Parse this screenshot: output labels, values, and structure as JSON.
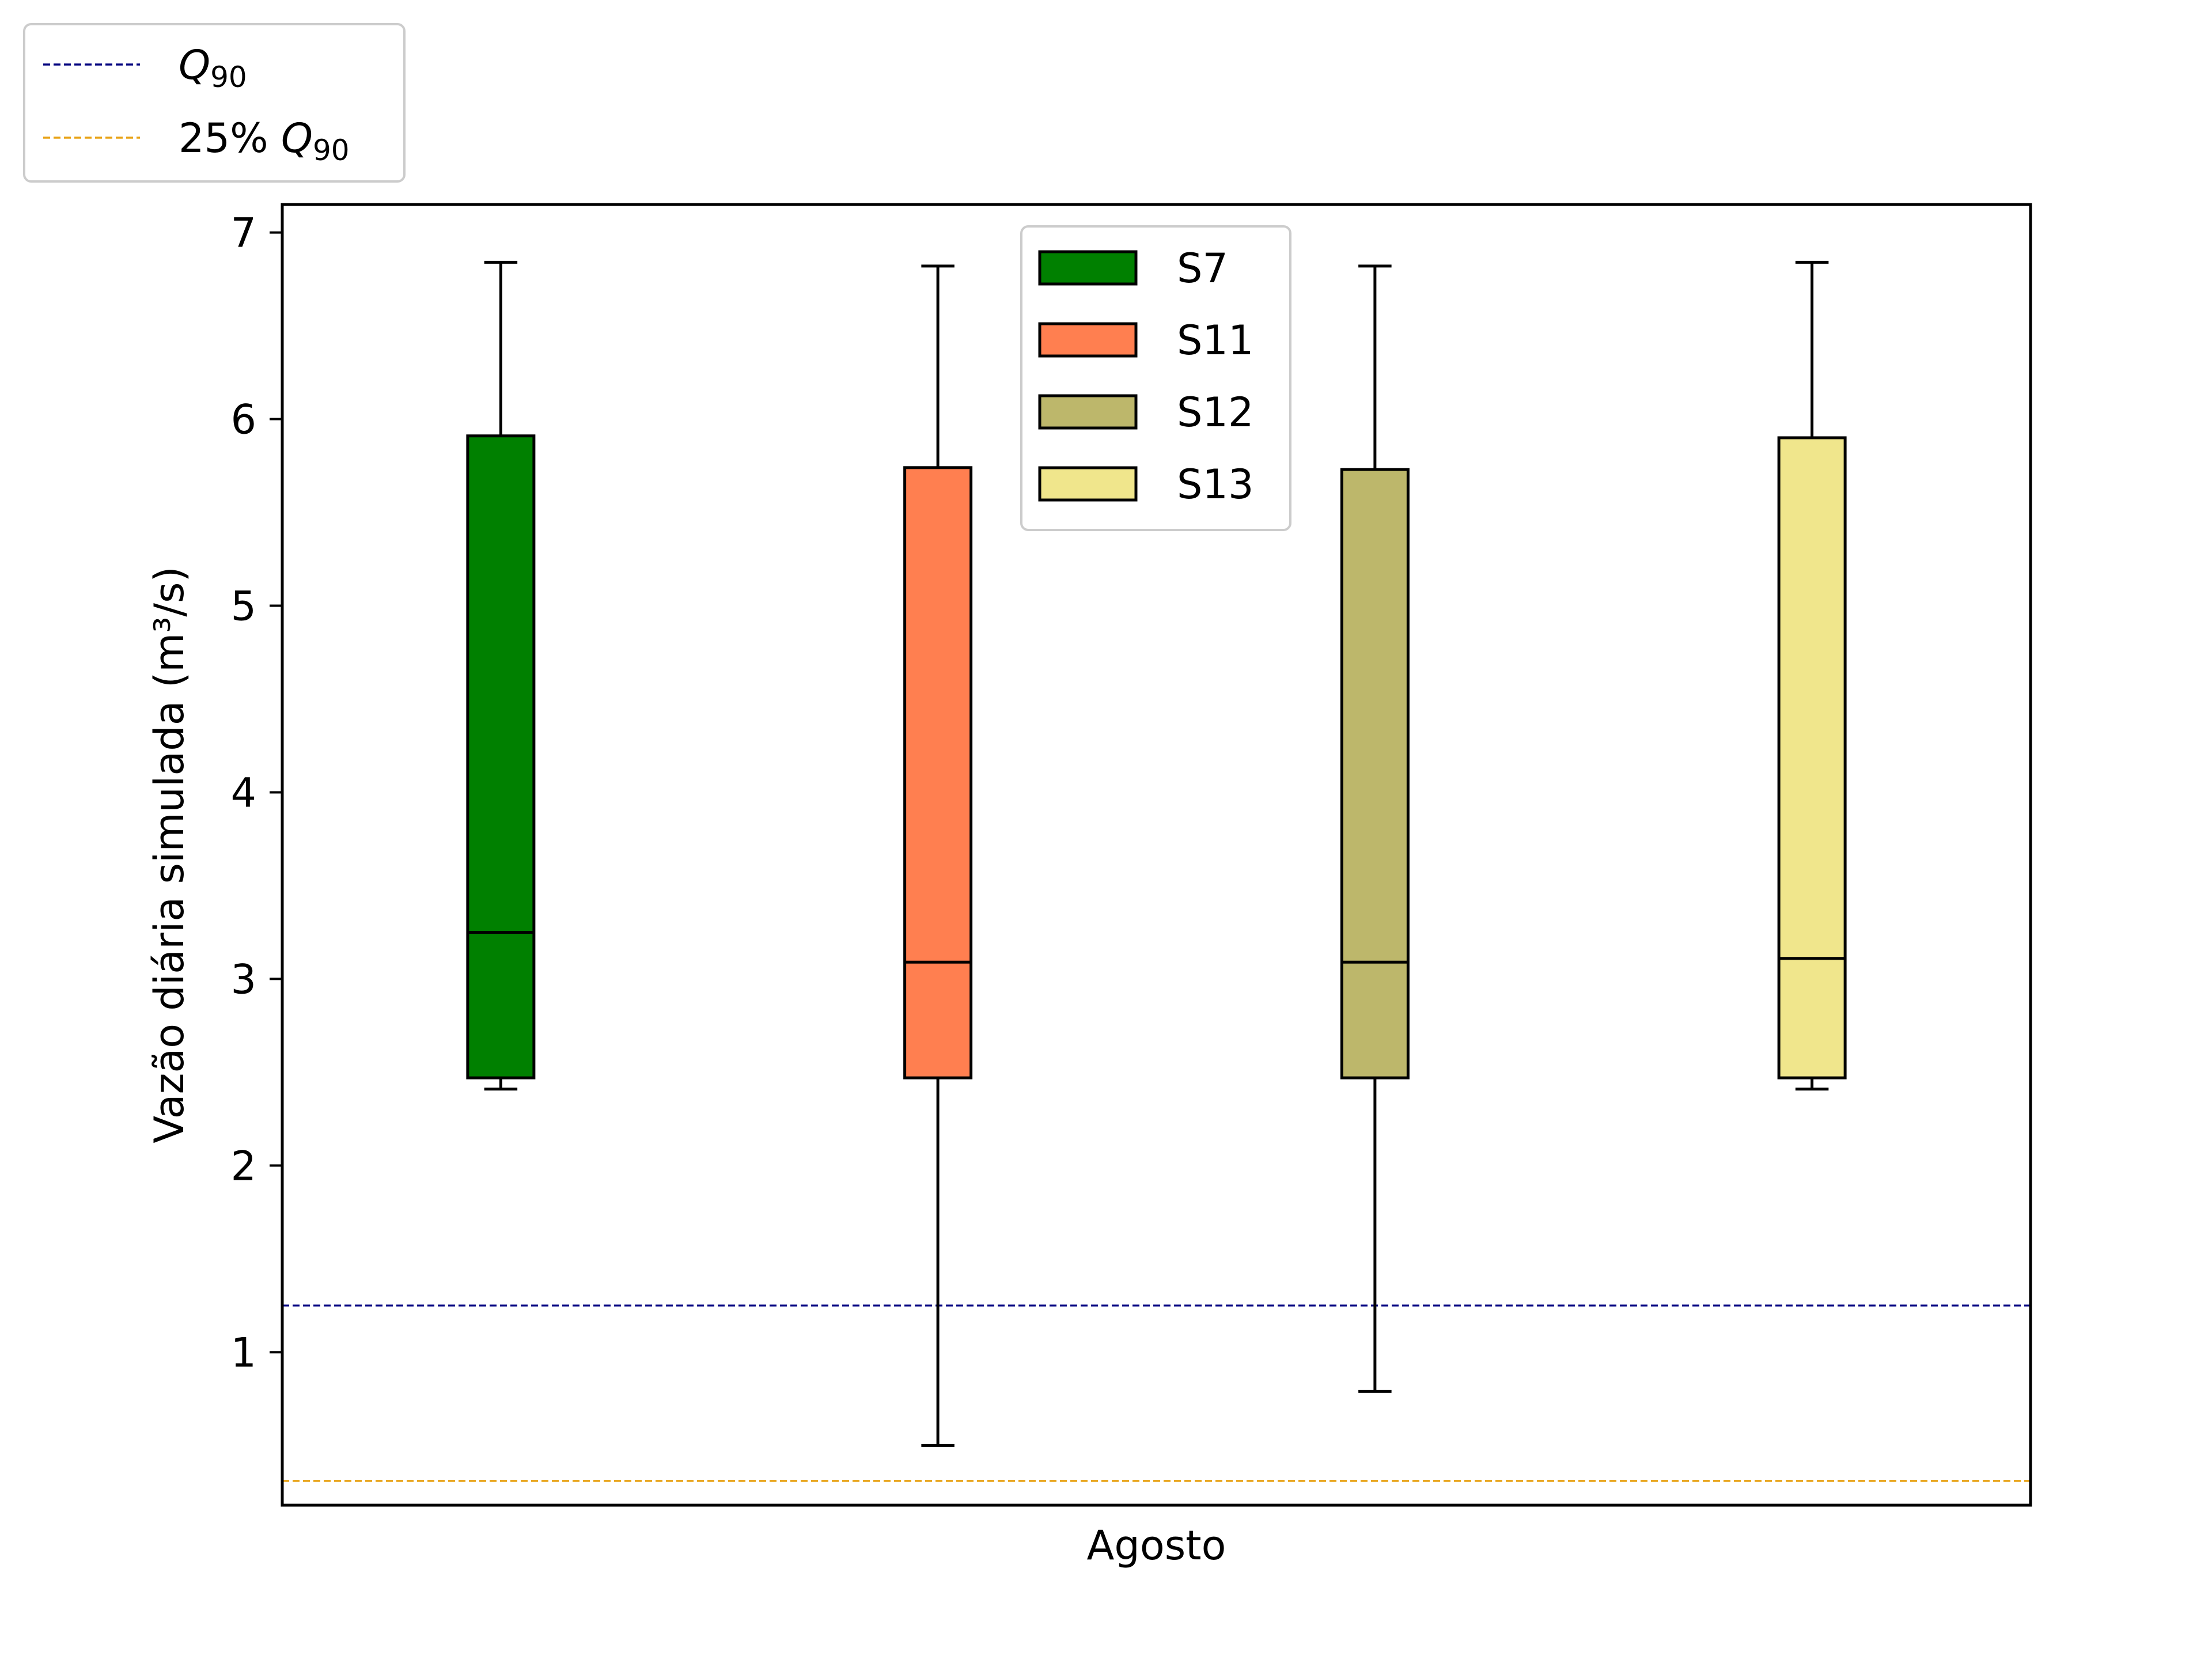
{
  "chart_data": {
    "type": "box",
    "category": "Agosto",
    "xlabel": "Agosto",
    "ylabel": "Vazão diária simulada (m³/s)",
    "ylim": [
      0.18,
      7.15
    ],
    "yticks": [
      "1",
      "2",
      "3",
      "4",
      "5",
      "6",
      "7"
    ],
    "ytick_values": [
      1,
      2,
      3,
      4,
      5,
      6,
      7
    ],
    "series": [
      {
        "name": "S7",
        "color": "#008000",
        "whisker_low": 2.41,
        "q1": 2.47,
        "median": 3.25,
        "q3": 5.91,
        "whisker_high": 6.84
      },
      {
        "name": "S11",
        "color": "#FF7F50",
        "whisker_low": 0.5,
        "q1": 2.47,
        "median": 3.09,
        "q3": 5.74,
        "whisker_high": 6.82
      },
      {
        "name": "S12",
        "color": "#BDB76B",
        "whisker_low": 0.79,
        "q1": 2.47,
        "median": 3.09,
        "q3": 5.73,
        "whisker_high": 6.82
      },
      {
        "name": "S13",
        "color": "#F0E68C",
        "whisker_low": 2.41,
        "q1": 2.47,
        "median": 3.11,
        "q3": 5.9,
        "whisker_high": 6.84
      }
    ],
    "reference_lines": [
      {
        "name": "Q",
        "subscript": "90",
        "value": 1.25,
        "color": "#000080",
        "style": "dashed"
      },
      {
        "name": "25% Q",
        "subscript": "90",
        "value": 0.31,
        "color": "#E8A317",
        "style": "dashed"
      }
    ],
    "legend_series_placement": "top-center",
    "legend_lines_placement": "outside-top-left",
    "grid": false
  }
}
